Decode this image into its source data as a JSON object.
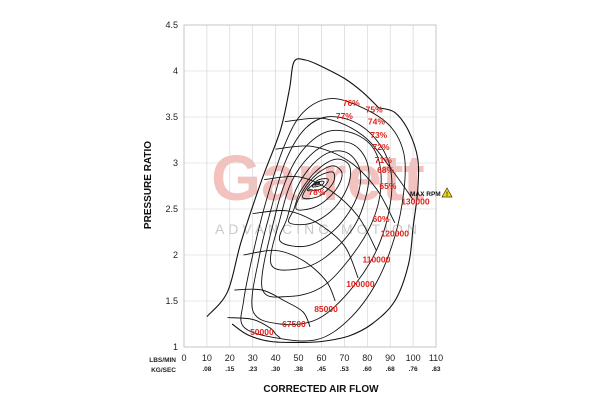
{
  "chart_data": {
    "type": "line",
    "title": "",
    "xlabel": "CORRECTED AIR FLOW",
    "ylabel": "PRESSURE RATIO",
    "x_unit_lbs": "LBS/MIN",
    "x_unit_kg": "KG/SEC",
    "xlim": [
      0,
      110
    ],
    "ylim": [
      1,
      4.5
    ],
    "x_ticks": [
      "0",
      "10",
      "20",
      "30",
      "40",
      "50",
      "60",
      "70",
      "80",
      "90",
      "100",
      "110"
    ],
    "x_ticks_kg": [
      ".08",
      ".15",
      ".23",
      ".30",
      ".38",
      ".45",
      ".53",
      ".60",
      ".68",
      ".76",
      ".83"
    ],
    "y_ticks": [
      "1",
      "1.5",
      "2",
      "2.5",
      "3",
      "3.5",
      "4",
      "4.5"
    ],
    "grid": true,
    "watermark": {
      "brand": "Garrett",
      "tagline": "ADVANCING MOTION"
    },
    "label_color": "#e0231a",
    "warning_icon": "warning-triangle-icon",
    "max_rpm": {
      "label": "MAX RPM",
      "speed": "130000"
    },
    "surge_line": [
      [
        10,
        1.33
      ],
      [
        19,
        1.6
      ],
      [
        25,
        2.15
      ],
      [
        34,
        2.82
      ],
      [
        42,
        3.35
      ],
      [
        46,
        3.8
      ],
      [
        48,
        4.1
      ],
      [
        53,
        4.12
      ],
      [
        60,
        4.05
      ],
      [
        70,
        3.92
      ],
      [
        78,
        3.77
      ],
      [
        85,
        3.6
      ]
    ],
    "choke_line": [
      [
        21,
        1.25
      ],
      [
        28,
        1.13
      ],
      [
        38,
        1.06
      ],
      [
        50,
        1.05
      ],
      [
        60,
        1.06
      ],
      [
        72,
        1.12
      ],
      [
        82,
        1.25
      ],
      [
        92,
        1.5
      ],
      [
        98,
        1.9
      ],
      [
        100,
        2.3
      ],
      [
        102,
        2.7
      ],
      [
        102,
        3.05
      ],
      [
        98,
        3.35
      ],
      [
        92,
        3.55
      ],
      [
        85,
        3.6
      ]
    ],
    "speed_lines": [
      {
        "label": "50000",
        "points": [
          [
            19,
            1.32
          ],
          [
            30,
            1.3
          ],
          [
            38,
            1.2
          ],
          [
            40,
            1.14
          ],
          [
            42,
            1.1
          ]
        ],
        "label_at": [
          34,
          1.13
        ]
      },
      {
        "label": "67500",
        "points": [
          [
            22,
            1.62
          ],
          [
            34,
            1.62
          ],
          [
            44,
            1.5
          ],
          [
            52,
            1.38
          ],
          [
            55,
            1.22
          ]
        ],
        "label_at": [
          48,
          1.22
        ]
      },
      {
        "label": "85000",
        "points": [
          [
            26,
            2.0
          ],
          [
            40,
            2.05
          ],
          [
            52,
            1.94
          ],
          [
            62,
            1.72
          ],
          [
            66,
            1.5
          ]
        ],
        "label_at": [
          62,
          1.38
        ]
      },
      {
        "label": "100000",
        "points": [
          [
            30,
            2.45
          ],
          [
            45,
            2.48
          ],
          [
            58,
            2.35
          ],
          [
            70,
            2.1
          ],
          [
            76,
            1.75
          ]
        ],
        "label_at": [
          77,
          1.65
        ]
      },
      {
        "label": "110000",
        "points": [
          [
            35,
            2.82
          ],
          [
            50,
            2.85
          ],
          [
            64,
            2.7
          ],
          [
            76,
            2.42
          ],
          [
            84,
            2.05
          ]
        ],
        "label_at": [
          84,
          1.92
        ]
      },
      {
        "label": "120000",
        "points": [
          [
            40,
            3.15
          ],
          [
            56,
            3.18
          ],
          [
            72,
            3.02
          ],
          [
            84,
            2.72
          ],
          [
            92,
            2.35
          ]
        ],
        "label_at": [
          92,
          2.2
        ]
      },
      {
        "label": "130000",
        "points": [
          [
            44,
            3.45
          ],
          [
            62,
            3.48
          ],
          [
            78,
            3.3
          ],
          [
            90,
            2.95
          ],
          [
            100,
            2.6
          ]
        ],
        "label_at": [
          101,
          2.55
        ]
      }
    ],
    "efficiency_islands": [
      {
        "label": "60%",
        "points": [
          [
            26,
            1.22
          ],
          [
            40,
            1.1
          ],
          [
            58,
            1.08
          ],
          [
            72,
            1.3
          ],
          [
            84,
            1.7
          ],
          [
            92,
            2.2
          ],
          [
            96,
            2.7
          ],
          [
            96,
            3.1
          ],
          [
            90,
            3.4
          ],
          [
            78,
            3.6
          ],
          [
            64,
            3.7
          ],
          [
            52,
            3.55
          ],
          [
            44,
            3.2
          ],
          [
            36,
            2.6
          ],
          [
            30,
            2.0
          ],
          [
            26,
            1.5
          ]
        ],
        "label_at": [
          86,
          2.36
        ]
      },
      {
        "label": "65%",
        "points": [
          [
            30,
            1.4
          ],
          [
            42,
            1.25
          ],
          [
            58,
            1.3
          ],
          [
            72,
            1.6
          ],
          [
            84,
            2.05
          ],
          [
            90,
            2.55
          ],
          [
            90,
            2.95
          ],
          [
            84,
            3.25
          ],
          [
            74,
            3.45
          ],
          [
            62,
            3.5
          ],
          [
            52,
            3.35
          ],
          [
            44,
            3.0
          ],
          [
            38,
            2.5
          ],
          [
            33,
            2.0
          ]
        ],
        "label_at": [
          89,
          2.72
        ]
      },
      {
        "label": "68%",
        "points": [
          [
            34,
            1.65
          ],
          [
            46,
            1.55
          ],
          [
            60,
            1.65
          ],
          [
            72,
            1.95
          ],
          [
            82,
            2.35
          ],
          [
            86,
            2.75
          ],
          [
            84,
            3.1
          ],
          [
            76,
            3.3
          ],
          [
            64,
            3.35
          ],
          [
            54,
            3.2
          ],
          [
            46,
            2.9
          ],
          [
            40,
            2.45
          ]
        ],
        "label_at": [
          88,
          2.89
        ]
      },
      {
        "label": "71%",
        "points": [
          [
            38,
            1.9
          ],
          [
            50,
            1.85
          ],
          [
            62,
            1.98
          ],
          [
            74,
            2.3
          ],
          [
            80,
            2.7
          ],
          [
            80,
            3.0
          ],
          [
            74,
            3.2
          ],
          [
            64,
            3.22
          ],
          [
            55,
            3.08
          ],
          [
            47,
            2.8
          ],
          [
            42,
            2.4
          ]
        ],
        "label_at": [
          87,
          3.0
        ]
      },
      {
        "label": "72%",
        "points": [
          [
            42,
            2.15
          ],
          [
            54,
            2.1
          ],
          [
            66,
            2.28
          ],
          [
            75,
            2.6
          ],
          [
            77,
            2.9
          ],
          [
            72,
            3.1
          ],
          [
            64,
            3.12
          ],
          [
            56,
            2.98
          ],
          [
            49,
            2.72
          ],
          [
            45,
            2.4
          ]
        ],
        "label_at": [
          86,
          3.14
        ]
      },
      {
        "label": "73%",
        "points": [
          [
            46,
            2.35
          ],
          [
            56,
            2.35
          ],
          [
            66,
            2.52
          ],
          [
            72,
            2.78
          ],
          [
            72,
            2.98
          ],
          [
            66,
            3.04
          ],
          [
            58,
            2.92
          ],
          [
            51,
            2.7
          ],
          [
            48,
            2.5
          ]
        ],
        "label_at": [
          85,
          3.27
        ]
      },
      {
        "label": "74%",
        "points": [
          [
            49,
            2.5
          ],
          [
            58,
            2.53
          ],
          [
            66,
            2.7
          ],
          [
            69,
            2.88
          ],
          [
            65,
            2.97
          ],
          [
            58,
            2.88
          ],
          [
            52,
            2.7
          ]
        ],
        "label_at": [
          84,
          3.42
        ]
      },
      {
        "label": "75%",
        "points": [
          [
            52,
            2.62
          ],
          [
            59,
            2.64
          ],
          [
            65,
            2.78
          ],
          [
            65,
            2.9
          ],
          [
            59,
            2.86
          ],
          [
            54,
            2.74
          ]
        ],
        "label_at": [
          83,
          3.55
        ]
      },
      {
        "label": "76%",
        "points": [
          [
            54,
            2.7
          ],
          [
            60,
            2.72
          ],
          [
            63,
            2.82
          ],
          [
            59,
            2.82
          ],
          [
            56,
            2.76
          ]
        ],
        "label_at": [
          73,
          3.62
        ]
      },
      {
        "label": "77%",
        "points": [
          [
            56,
            2.74
          ],
          [
            60,
            2.76
          ],
          [
            61,
            2.8
          ],
          [
            58,
            2.79
          ]
        ],
        "label_at": [
          70,
          3.48
        ]
      },
      {
        "label": "78%",
        "points": [
          [
            57,
            2.76
          ],
          [
            59,
            2.77
          ],
          [
            59,
            2.79
          ]
        ],
        "label_at": [
          58,
          2.65
        ]
      }
    ]
  }
}
